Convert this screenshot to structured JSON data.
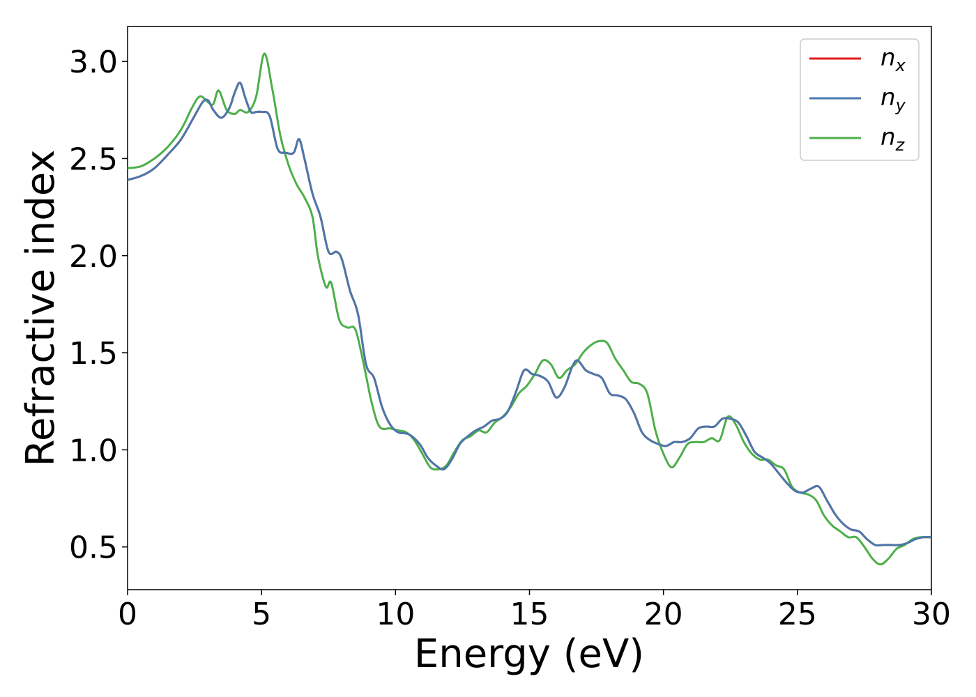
{
  "chart_data": {
    "type": "line",
    "title": "",
    "xlabel": "Energy (eV)",
    "ylabel": "Refractive index",
    "xlim": [
      0,
      30
    ],
    "ylim": [
      0.28,
      3.18
    ],
    "xticks": [
      0,
      5,
      10,
      15,
      20,
      25,
      30
    ],
    "xtick_labels": [
      "0",
      "5",
      "10",
      "15",
      "20",
      "25",
      "30"
    ],
    "yticks": [
      0.5,
      1.0,
      1.5,
      2.0,
      2.5,
      3.0
    ],
    "ytick_labels": [
      "0.5",
      "1.0",
      "1.5",
      "2.0",
      "2.5",
      "3.0"
    ],
    "grid": false,
    "legend": {
      "placement": "top-right"
    },
    "series": [
      {
        "name": "n_x",
        "label_base": "n",
        "label_sub": "x",
        "color": "#e41a1c",
        "x": [
          0,
          0.5,
          1,
          1.5,
          2,
          2.5,
          2.8,
          3.0,
          3.2,
          3.5,
          3.8,
          4.0,
          4.2,
          4.4,
          4.6,
          4.8,
          5.0,
          5.3,
          5.6,
          5.9,
          6.2,
          6.4,
          6.6,
          6.9,
          7.2,
          7.5,
          7.8,
          8.0,
          8.3,
          8.6,
          8.9,
          9.2,
          9.5,
          9.8,
          10.1,
          10.5,
          10.9,
          11.2,
          11.5,
          11.8,
          12.1,
          12.4,
          12.7,
          13.0,
          13.3,
          13.6,
          13.9,
          14.2,
          14.5,
          14.8,
          15.1,
          15.4,
          15.7,
          16.0,
          16.3,
          16.6,
          16.8,
          17.1,
          17.4,
          17.7,
          18.0,
          18.3,
          18.6,
          18.9,
          19.2,
          19.5,
          19.8,
          20.1,
          20.4,
          20.7,
          21.0,
          21.3,
          21.6,
          21.9,
          22.2,
          22.5,
          22.8,
          23.1,
          23.4,
          23.7,
          24.0,
          24.3,
          24.6,
          24.9,
          25.2,
          25.5,
          25.8,
          26.1,
          26.4,
          26.7,
          27.0,
          27.3,
          27.6,
          27.9,
          28.2,
          28.5,
          28.8,
          29.1,
          29.4,
          29.7,
          30.0
        ],
        "y": [
          2.39,
          2.41,
          2.45,
          2.52,
          2.6,
          2.72,
          2.79,
          2.8,
          2.75,
          2.71,
          2.76,
          2.84,
          2.89,
          2.81,
          2.74,
          2.74,
          2.74,
          2.72,
          2.55,
          2.53,
          2.53,
          2.6,
          2.5,
          2.32,
          2.2,
          2.02,
          2.02,
          1.98,
          1.82,
          1.7,
          1.44,
          1.37,
          1.22,
          1.13,
          1.09,
          1.08,
          1.03,
          0.96,
          0.92,
          0.9,
          0.95,
          1.03,
          1.07,
          1.1,
          1.12,
          1.15,
          1.16,
          1.2,
          1.3,
          1.41,
          1.39,
          1.38,
          1.35,
          1.27,
          1.32,
          1.43,
          1.46,
          1.41,
          1.39,
          1.37,
          1.29,
          1.28,
          1.26,
          1.19,
          1.09,
          1.05,
          1.03,
          1.02,
          1.04,
          1.04,
          1.06,
          1.11,
          1.12,
          1.12,
          1.16,
          1.16,
          1.14,
          1.07,
          0.99,
          0.96,
          0.93,
          0.88,
          0.83,
          0.79,
          0.78,
          0.8,
          0.81,
          0.74,
          0.67,
          0.62,
          0.59,
          0.58,
          0.54,
          0.51,
          0.51,
          0.51,
          0.51,
          0.52,
          0.54,
          0.55,
          0.55
        ]
      },
      {
        "name": "n_y",
        "label_base": "n",
        "label_sub": "y",
        "color": "#4a78ab",
        "x": [
          0,
          0.5,
          1,
          1.5,
          2,
          2.5,
          2.8,
          3.0,
          3.2,
          3.5,
          3.8,
          4.0,
          4.2,
          4.4,
          4.6,
          4.8,
          5.0,
          5.3,
          5.6,
          5.9,
          6.2,
          6.4,
          6.6,
          6.9,
          7.2,
          7.5,
          7.8,
          8.0,
          8.3,
          8.6,
          8.9,
          9.2,
          9.5,
          9.8,
          10.1,
          10.5,
          10.9,
          11.2,
          11.5,
          11.8,
          12.1,
          12.4,
          12.7,
          13.0,
          13.3,
          13.6,
          13.9,
          14.2,
          14.5,
          14.8,
          15.1,
          15.4,
          15.7,
          16.0,
          16.3,
          16.6,
          16.8,
          17.1,
          17.4,
          17.7,
          18.0,
          18.3,
          18.6,
          18.9,
          19.2,
          19.5,
          19.8,
          20.1,
          20.4,
          20.7,
          21.0,
          21.3,
          21.6,
          21.9,
          22.2,
          22.5,
          22.8,
          23.1,
          23.4,
          23.7,
          24.0,
          24.3,
          24.6,
          24.9,
          25.2,
          25.5,
          25.8,
          26.1,
          26.4,
          26.7,
          27.0,
          27.3,
          27.6,
          27.9,
          28.2,
          28.5,
          28.8,
          29.1,
          29.4,
          29.7,
          30.0
        ],
        "y": [
          2.39,
          2.41,
          2.45,
          2.52,
          2.6,
          2.72,
          2.79,
          2.8,
          2.75,
          2.71,
          2.76,
          2.84,
          2.89,
          2.81,
          2.74,
          2.74,
          2.74,
          2.72,
          2.55,
          2.53,
          2.53,
          2.6,
          2.5,
          2.32,
          2.2,
          2.02,
          2.02,
          1.98,
          1.82,
          1.7,
          1.44,
          1.37,
          1.22,
          1.13,
          1.09,
          1.08,
          1.03,
          0.96,
          0.92,
          0.9,
          0.95,
          1.03,
          1.07,
          1.1,
          1.12,
          1.15,
          1.16,
          1.2,
          1.3,
          1.41,
          1.39,
          1.38,
          1.35,
          1.27,
          1.32,
          1.43,
          1.46,
          1.41,
          1.39,
          1.37,
          1.29,
          1.28,
          1.26,
          1.19,
          1.09,
          1.05,
          1.03,
          1.02,
          1.04,
          1.04,
          1.06,
          1.11,
          1.12,
          1.12,
          1.16,
          1.16,
          1.14,
          1.07,
          0.99,
          0.96,
          0.93,
          0.88,
          0.83,
          0.79,
          0.78,
          0.8,
          0.81,
          0.74,
          0.67,
          0.62,
          0.59,
          0.58,
          0.54,
          0.51,
          0.51,
          0.51,
          0.51,
          0.52,
          0.54,
          0.55,
          0.55
        ]
      },
      {
        "name": "n_z",
        "label_base": "n",
        "label_sub": "z",
        "color": "#4daf4a",
        "x": [
          0,
          0.5,
          1,
          1.5,
          2,
          2.4,
          2.7,
          3.0,
          3.2,
          3.4,
          3.7,
          4.0,
          4.2,
          4.5,
          4.8,
          5.1,
          5.4,
          5.7,
          6.0,
          6.3,
          6.6,
          6.9,
          7.1,
          7.4,
          7.6,
          7.9,
          8.2,
          8.5,
          8.8,
          9.1,
          9.4,
          9.8,
          10.1,
          10.4,
          10.7,
          11.0,
          11.3,
          11.6,
          11.9,
          12.2,
          12.5,
          12.8,
          13.1,
          13.4,
          13.7,
          14.0,
          14.3,
          14.6,
          14.9,
          15.2,
          15.5,
          15.8,
          16.1,
          16.4,
          16.7,
          17.0,
          17.3,
          17.6,
          17.9,
          18.2,
          18.5,
          18.8,
          19.1,
          19.4,
          19.7,
          20.0,
          20.3,
          20.6,
          20.9,
          21.2,
          21.5,
          21.8,
          22.1,
          22.4,
          22.7,
          23.0,
          23.3,
          23.6,
          23.9,
          24.2,
          24.5,
          24.8,
          25.1,
          25.4,
          25.7,
          26.0,
          26.3,
          26.6,
          26.9,
          27.2,
          27.5,
          27.8,
          28.1,
          28.4,
          28.7,
          29.0,
          29.3,
          29.6,
          30.0
        ],
        "y": [
          2.45,
          2.46,
          2.5,
          2.56,
          2.65,
          2.76,
          2.82,
          2.79,
          2.78,
          2.85,
          2.75,
          2.73,
          2.75,
          2.74,
          2.82,
          3.04,
          2.86,
          2.62,
          2.47,
          2.37,
          2.3,
          2.2,
          2.0,
          1.84,
          1.86,
          1.67,
          1.63,
          1.62,
          1.45,
          1.25,
          1.12,
          1.11,
          1.1,
          1.09,
          1.05,
          0.98,
          0.91,
          0.9,
          0.92,
          0.99,
          1.05,
          1.07,
          1.1,
          1.09,
          1.14,
          1.17,
          1.22,
          1.29,
          1.33,
          1.39,
          1.46,
          1.44,
          1.37,
          1.41,
          1.44,
          1.5,
          1.54,
          1.56,
          1.55,
          1.47,
          1.41,
          1.35,
          1.34,
          1.29,
          1.1,
          0.98,
          0.91,
          0.96,
          1.03,
          1.04,
          1.04,
          1.06,
          1.05,
          1.17,
          1.13,
          1.04,
          0.98,
          0.95,
          0.95,
          0.92,
          0.9,
          0.81,
          0.78,
          0.77,
          0.74,
          0.66,
          0.61,
          0.58,
          0.55,
          0.55,
          0.5,
          0.44,
          0.41,
          0.44,
          0.49,
          0.51,
          0.54,
          0.55,
          0.55
        ]
      }
    ]
  }
}
